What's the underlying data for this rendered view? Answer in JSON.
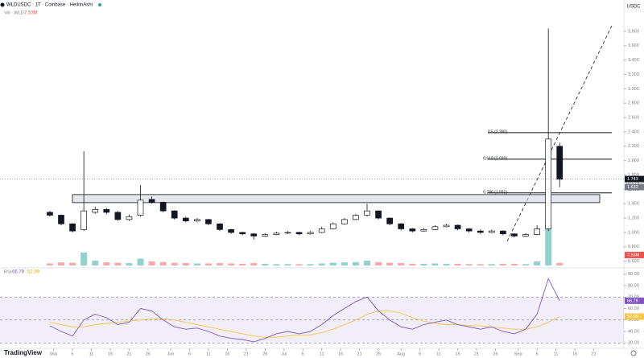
{
  "chart_data": {
    "type": "candlestick",
    "title": "WLDUSDC · 1T · Coinbase · HeikinAshi",
    "currency": "USDC",
    "brand": "TradingView",
    "xlim": [
      -13.2,
      152
    ],
    "xticks": [
      {
        "value": 1,
        "label": "Mai"
      },
      6,
      11,
      16,
      21,
      26,
      {
        "value": 32,
        "label": "Jun"
      },
      {
        "value": 37,
        "label": "6"
      },
      {
        "value": 42,
        "label": "11"
      },
      {
        "value": 47,
        "label": "16"
      },
      {
        "value": 52,
        "label": "21"
      },
      {
        "value": 57,
        "label": "26"
      },
      {
        "value": 62,
        "label": "Jul"
      },
      {
        "value": 67,
        "label": "6"
      },
      {
        "value": 72,
        "label": "11"
      },
      {
        "value": 77,
        "label": "16"
      },
      {
        "value": 82,
        "label": "21"
      },
      {
        "value": 87,
        "label": "26"
      },
      {
        "value": 93,
        "label": "Aug"
      },
      {
        "value": 98,
        "label": "6"
      },
      {
        "value": 103,
        "label": "11"
      },
      {
        "value": 108,
        "label": "16"
      },
      {
        "value": 113,
        "label": "21"
      },
      {
        "value": 118,
        "label": "26"
      },
      {
        "value": 124,
        "label": "Sep"
      },
      {
        "value": 129,
        "label": "6"
      },
      {
        "value": 134,
        "label": "11"
      },
      {
        "value": 139,
        "label": "16"
      },
      {
        "value": 144,
        "label": "21"
      }
    ],
    "x": [
      0,
      3,
      6,
      9,
      12,
      15,
      18,
      21,
      24,
      27,
      30,
      33,
      36,
      39,
      42,
      45,
      48,
      51,
      54,
      57,
      60,
      63,
      66,
      69,
      72,
      75,
      78,
      81,
      84,
      87,
      90,
      93,
      96,
      99,
      102,
      105,
      108,
      111,
      114,
      117,
      120,
      123,
      126,
      129,
      132,
      135
    ],
    "ohlc": [
      [
        1.28,
        1.3,
        1.22,
        1.24
      ],
      [
        1.24,
        1.25,
        1.1,
        1.12
      ],
      [
        1.12,
        1.13,
        1.0,
        1.02
      ],
      [
        1.04,
        2.13,
        1.02,
        1.3
      ],
      [
        1.28,
        1.36,
        1.26,
        1.32
      ],
      [
        1.32,
        1.34,
        1.25,
        1.28
      ],
      [
        1.28,
        1.3,
        1.16,
        1.18
      ],
      [
        1.18,
        1.25,
        1.16,
        1.22
      ],
      [
        1.24,
        1.66,
        1.22,
        1.45
      ],
      [
        1.46,
        1.5,
        1.4,
        1.42
      ],
      [
        1.42,
        1.43,
        1.28,
        1.3
      ],
      [
        1.3,
        1.31,
        1.18,
        1.2
      ],
      [
        1.2,
        1.22,
        1.14,
        1.16
      ],
      [
        1.16,
        1.2,
        1.14,
        1.18
      ],
      [
        1.18,
        1.19,
        1.1,
        1.12
      ],
      [
        1.12,
        1.13,
        1.02,
        1.04
      ],
      [
        1.04,
        1.05,
        0.98,
        1.0
      ],
      [
        1.0,
        1.01,
        0.96,
        0.98
      ],
      [
        0.98,
        0.99,
        0.9,
        0.95
      ],
      [
        0.95,
        0.99,
        0.94,
        0.97
      ],
      [
        0.97,
        1.01,
        0.96,
        0.99
      ],
      [
        0.99,
        1.02,
        0.98,
        1.0
      ],
      [
        1.0,
        1.01,
        0.96,
        0.98
      ],
      [
        0.98,
        1.02,
        0.97,
        1.0
      ],
      [
        1.0,
        1.08,
        0.99,
        1.05
      ],
      [
        1.05,
        1.14,
        1.04,
        1.12
      ],
      [
        1.12,
        1.2,
        1.11,
        1.18
      ],
      [
        1.18,
        1.26,
        1.17,
        1.24
      ],
      [
        1.24,
        1.4,
        1.22,
        1.3
      ],
      [
        1.3,
        1.31,
        1.18,
        1.2
      ],
      [
        1.2,
        1.21,
        1.1,
        1.12
      ],
      [
        1.12,
        1.13,
        1.03,
        1.05
      ],
      [
        1.05,
        1.06,
        1.0,
        1.02
      ],
      [
        1.02,
        1.06,
        1.01,
        1.04
      ],
      [
        1.04,
        1.1,
        1.03,
        1.08
      ],
      [
        1.08,
        1.12,
        1.07,
        1.1
      ],
      [
        1.1,
        1.11,
        1.03,
        1.05
      ],
      [
        1.05,
        1.06,
        1.0,
        1.02
      ],
      [
        1.02,
        1.04,
        0.98,
        1.0
      ],
      [
        1.0,
        1.04,
        0.99,
        1.02
      ],
      [
        1.02,
        1.03,
        0.96,
        0.98
      ],
      [
        0.98,
        0.99,
        0.93,
        0.95
      ],
      [
        0.95,
        0.99,
        0.94,
        0.97
      ],
      [
        0.97,
        1.1,
        0.96,
        1.05
      ],
      [
        1.05,
        3.84,
        1.02,
        2.3
      ],
      [
        2.2,
        2.25,
        1.63,
        1.74
      ]
    ],
    "ylim": [
      0.54,
      3.9
    ],
    "yticks": [
      {
        "value": 0.6,
        "label": "0.600"
      },
      {
        "value": 0.8,
        "label": "0.800"
      },
      {
        "value": 1.0,
        "label": "1.000"
      },
      {
        "value": 1.2,
        "label": "1.200"
      },
      {
        "value": 1.4,
        "label": "1.400"
      },
      {
        "value": 1.6,
        "label": "1.600"
      },
      {
        "value": 1.8,
        "label": "1.800"
      },
      {
        "value": 2.0,
        "label": "2.000"
      },
      {
        "value": 2.2,
        "label": "2.200"
      },
      {
        "value": 2.4,
        "label": "2.400"
      },
      {
        "value": 2.6,
        "label": "2.600"
      },
      {
        "value": 2.8,
        "label": "2.800"
      },
      {
        "value": 3.0,
        "label": "3.000"
      },
      {
        "value": 3.2,
        "label": "3.200"
      },
      {
        "value": 3.4,
        "label": "3.400"
      },
      {
        "value": 3.6,
        "label": "3.600"
      },
      {
        "value": 3.8,
        "label": "3.800"
      }
    ],
    "fib_levels": [
      {
        "value": 2.39,
        "label": "0.5 (2.390)"
      },
      {
        "value": 2.02,
        "label": "0.618 (2.020)"
      },
      {
        "value": 1.551,
        "label": "0.786 (1.551)"
      }
    ],
    "zone": [
      1.415,
      1.527
    ],
    "price_badges": [
      {
        "value": 1.743,
        "label": "1.743",
        "color": "#131722"
      },
      {
        "value": 1.632,
        "label": "1.632",
        "color": "#787b86"
      }
    ],
    "countdown": "00:52:17",
    "volume": {
      "label": "Vol · WLD",
      "value_label": "7.53M",
      "ylim": [
        0,
        130
      ],
      "up_color": "#26a69a",
      "down_color": "#ef5350",
      "values": [
        6,
        9,
        8,
        38,
        14,
        9,
        8,
        7,
        20,
        12,
        10,
        8,
        7,
        6,
        6,
        7,
        6,
        5,
        7,
        5,
        4,
        4,
        4,
        4,
        6,
        8,
        9,
        10,
        14,
        10,
        8,
        7,
        5,
        5,
        6,
        5,
        5,
        4,
        4,
        4,
        5,
        5,
        4,
        12,
        120,
        7.53
      ]
    },
    "rsi": {
      "name": "RSI",
      "color": "#7e57c2",
      "ma_color": "#f7c548",
      "ylim": [
        26,
        94
      ],
      "yticks": [
        {
          "value": 30,
          "label": "30.00"
        },
        {
          "value": 40,
          "label": "40.00"
        },
        {
          "value": 50,
          "label": "50.00"
        },
        {
          "value": 60,
          "label": "60.00"
        },
        {
          "value": 70,
          "label": "70.00"
        },
        {
          "value": 80,
          "label": "80.00"
        },
        {
          "value": 90,
          "label": "90.00"
        }
      ],
      "levels": [
        70,
        50,
        30
      ],
      "values": [
        45,
        40,
        36,
        50,
        55,
        52,
        46,
        48,
        60,
        58,
        50,
        44,
        42,
        43,
        40,
        36,
        34,
        33,
        31,
        34,
        38,
        40,
        38,
        40,
        46,
        54,
        60,
        66,
        70,
        58,
        50,
        44,
        42,
        46,
        48,
        50,
        46,
        44,
        42,
        44,
        40,
        38,
        42,
        55,
        86,
        66.79
      ],
      "ma_values": [
        48,
        46,
        44,
        44,
        46,
        47,
        48,
        49,
        50,
        51,
        51,
        50,
        48,
        46,
        44,
        42,
        40,
        38,
        36,
        35,
        35,
        36,
        37,
        37,
        39,
        42,
        46,
        50,
        55,
        58,
        58,
        56,
        52,
        49,
        47,
        46,
        46,
        45,
        45,
        44,
        43,
        42,
        42,
        44,
        48,
        52.99
      ]
    }
  }
}
